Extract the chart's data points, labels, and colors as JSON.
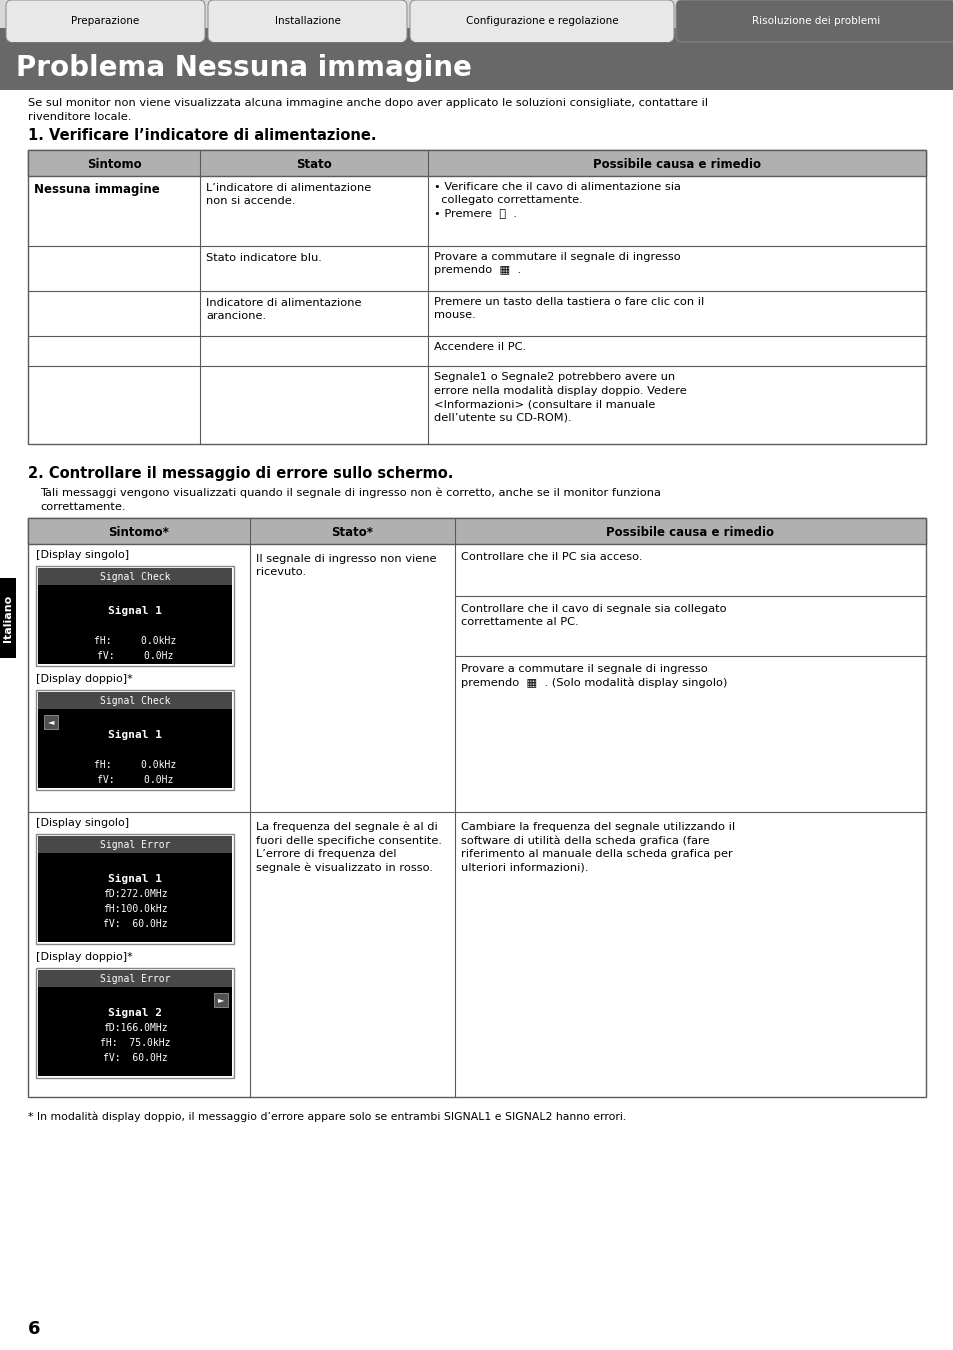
{
  "bg_color": "#ffffff",
  "title_text": "Problema Nessuna immagine",
  "tabs": [
    "Preparazione",
    "Installazione",
    "Configurazione e regolazione",
    "Risoluzione dei problemi"
  ],
  "intro_text": "Se sul monitor non viene visualizzata alcuna immagine anche dopo aver applicato le soluzioni consigliate, contattare il\nrivenditore locale.",
  "section1_title": "1. Verificare l’indicatore di alimentazione.",
  "section1_headers": [
    "Sintomo",
    "Stato",
    "Possibile causa e rimedio"
  ],
  "section2_title": "2. Controllare il messaggio di errore sullo schermo.",
  "section2_intro": "Tali messaggi vengono visualizzati quando il segnale di ingresso non è corretto, anche se il monitor funziona\ncorrettamente.",
  "section2_headers": [
    "Sintomo*",
    "Stato*",
    "Possibile causa e rimedio"
  ],
  "footnote": "* In modalità display doppio, il messaggio d’errore appare solo se entrambi SIGNAL1 e SIGNAL2 hanno errori.",
  "page_number": "6",
  "side_label": "Italiano"
}
